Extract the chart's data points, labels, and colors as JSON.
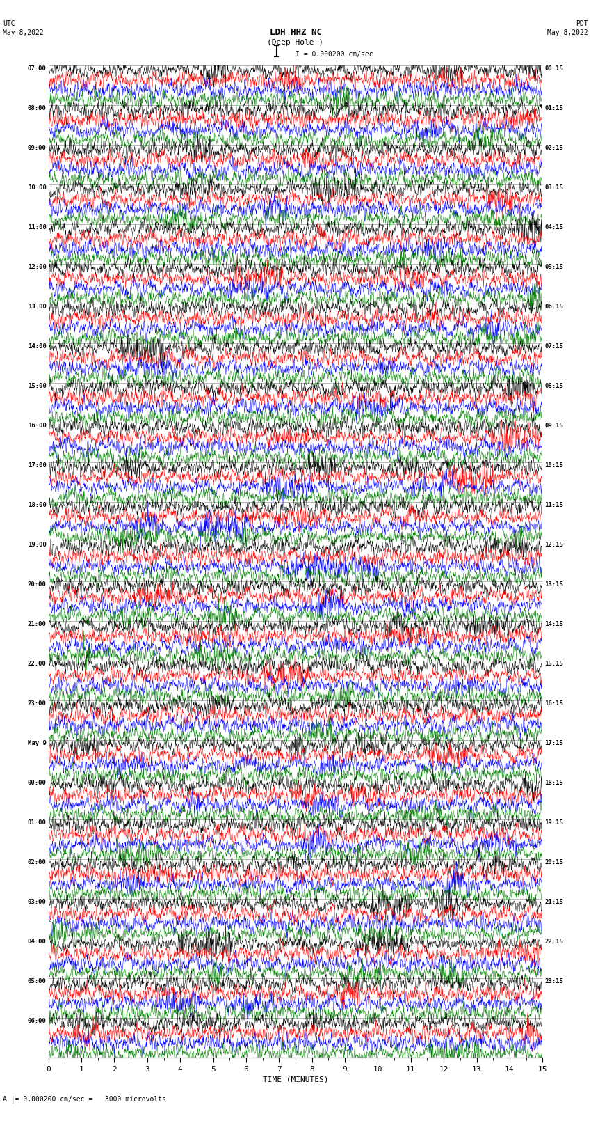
{
  "title_line1": "LDH HHZ NC",
  "title_line2": "(Deep Hole )",
  "scale_label": "I = 0.000200 cm/sec",
  "utc_label": "UTC\nMay 8,2022",
  "pdt_label": "PDT\nMay 8,2022",
  "bottom_label": "A |= 0.000200 cm/sec =   3000 microvolts",
  "xlabel": "TIME (MINUTES)",
  "colors": [
    "black",
    "red",
    "blue",
    "green"
  ],
  "left_times": [
    "07:00",
    "08:00",
    "09:00",
    "10:00",
    "11:00",
    "12:00",
    "13:00",
    "14:00",
    "15:00",
    "16:00",
    "17:00",
    "18:00",
    "19:00",
    "20:00",
    "21:00",
    "22:00",
    "23:00",
    "May 9",
    "00:00",
    "01:00",
    "02:00",
    "03:00",
    "04:00",
    "05:00",
    "06:00"
  ],
  "right_times": [
    "00:15",
    "01:15",
    "02:15",
    "03:15",
    "04:15",
    "05:15",
    "06:15",
    "07:15",
    "08:15",
    "09:15",
    "10:15",
    "11:15",
    "12:15",
    "13:15",
    "14:15",
    "15:15",
    "16:15",
    "17:15",
    "18:15",
    "19:15",
    "20:15",
    "21:15",
    "22:15",
    "23:15"
  ],
  "n_hour_groups": 25,
  "traces_per_group": 4,
  "n_cols": 1800,
  "x_min": 0,
  "x_max": 15,
  "background_color": "white",
  "fig_width": 8.5,
  "fig_height": 16.13,
  "dpi": 100
}
